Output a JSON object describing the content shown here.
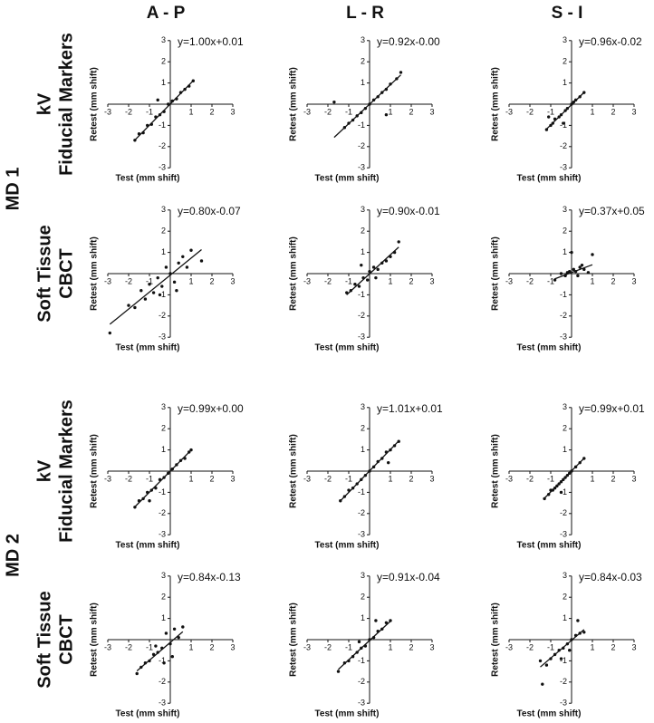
{
  "column_headers": [
    "A - P",
    "L - R",
    "S - I"
  ],
  "groups": [
    {
      "label": "MD 1",
      "rows": [
        [
          "kV",
          "Fiducial Markers"
        ],
        [
          "Soft Tissue",
          "CBCT"
        ]
      ]
    },
    {
      "label": "MD 2",
      "rows": [
        [
          "kV",
          "Fiducial Markers"
        ],
        [
          "Soft Tissue",
          "CBCT"
        ]
      ]
    }
  ],
  "chart_data": [
    {
      "type": "scatter",
      "xlabel": "Test (mm shift)",
      "ylabel": "Retest (mm shift)",
      "xlim": [
        -3,
        3
      ],
      "ylim": [
        -3,
        3
      ],
      "xticks": [
        -3,
        -2,
        -1,
        1,
        2,
        3
      ],
      "yticks": [
        -3,
        -2,
        -1,
        1,
        2,
        3
      ],
      "annotation": "y=1.00x+0.01",
      "fit": {
        "slope": 1.0,
        "intercept": 0.01
      },
      "color": "#111111",
      "x": [
        -1.7,
        -1.5,
        -1.3,
        -1.1,
        -0.9,
        -0.7,
        -0.5,
        -0.3,
        -0.1,
        0.1,
        0.3,
        0.5,
        0.7,
        0.9,
        1.1,
        -0.6
      ],
      "values": [
        -1.7,
        -1.4,
        -1.35,
        -1.0,
        -0.95,
        -0.6,
        -0.5,
        -0.35,
        0,
        0.15,
        0.25,
        0.55,
        0.7,
        0.85,
        1.1,
        0.2
      ]
    },
    {
      "type": "scatter",
      "xlabel": "Test (mm shift)",
      "ylabel": "Retest (mm shift)",
      "xlim": [
        -3,
        3
      ],
      "ylim": [
        -3,
        3
      ],
      "xticks": [
        -3,
        -2,
        -1,
        1,
        2,
        3
      ],
      "yticks": [
        -3,
        -2,
        -1,
        1,
        2,
        3
      ],
      "annotation": "y=0.92x-0.00",
      "fit": {
        "slope": 0.92,
        "intercept": 0
      },
      "color": "#111111",
      "x": [
        -1.2,
        -1.0,
        -0.8,
        -0.6,
        -0.4,
        -0.2,
        0,
        0.2,
        0.4,
        0.6,
        0.8,
        1.0,
        1.3,
        1.5,
        -1.7,
        0.8
      ],
      "values": [
        -1.1,
        -0.9,
        -0.75,
        -0.55,
        -0.4,
        -0.2,
        0,
        0.2,
        0.35,
        0.55,
        0.7,
        0.95,
        1.2,
        1.5,
        0.1,
        -0.5
      ]
    },
    {
      "type": "scatter",
      "xlabel": "Test (mm shift)",
      "ylabel": "Retest (mm shift)",
      "xlim": [
        -3,
        3
      ],
      "ylim": [
        -3,
        3
      ],
      "xticks": [
        -3,
        -2,
        -1,
        1,
        2,
        3
      ],
      "yticks": [
        -3,
        -2,
        -1,
        1,
        2,
        3
      ],
      "annotation": "y=0.96x-0.02",
      "fit": {
        "slope": 0.96,
        "intercept": -0.02
      },
      "color": "#111111",
      "x": [
        -1.2,
        -1.0,
        -0.9,
        -0.8,
        -0.6,
        -0.5,
        -0.3,
        -0.2,
        0,
        0.1,
        0.2,
        0.4,
        0.6,
        -1.1,
        -0.4
      ],
      "values": [
        -1.2,
        -1.0,
        -0.9,
        -0.7,
        -0.6,
        -0.5,
        -0.3,
        -0.2,
        0,
        0.1,
        0.2,
        0.35,
        0.55,
        -0.6,
        -0.9
      ]
    },
    {
      "type": "scatter",
      "xlabel": "Test (mm shift)",
      "ylabel": "Retest (mm shift)",
      "xlim": [
        -3,
        3
      ],
      "ylim": [
        -3,
        3
      ],
      "xticks": [
        -3,
        -2,
        -1,
        1,
        2,
        3
      ],
      "yticks": [
        -3,
        -2,
        -1,
        1,
        2,
        3
      ],
      "annotation": "y=0.80x-0.07",
      "fit": {
        "slope": 0.8,
        "intercept": -0.07
      },
      "color": "#111111",
      "x": [
        -2.9,
        -2.0,
        -1.7,
        -1.4,
        -1.2,
        -1.0,
        -0.8,
        -0.6,
        -0.4,
        -0.2,
        0,
        0.2,
        0.4,
        0.6,
        0.8,
        1.0,
        1.5,
        -0.5,
        0.3
      ],
      "values": [
        -2.8,
        -1.5,
        -1.6,
        -0.8,
        -1.2,
        -0.5,
        -0.9,
        -0.2,
        -0.6,
        0.3,
        0,
        -0.4,
        0.5,
        0.8,
        0.3,
        1.1,
        0.6,
        -1.0,
        -0.8
      ]
    },
    {
      "type": "scatter",
      "xlabel": "Test (mm shift)",
      "ylabel": "Retest (mm shift)",
      "xlim": [
        -3,
        3
      ],
      "ylim": [
        -3,
        3
      ],
      "xticks": [
        -3,
        -2,
        -1,
        1,
        2,
        3
      ],
      "yticks": [
        -3,
        -2,
        -1,
        1,
        2,
        3
      ],
      "annotation": "y=0.90x-0.01",
      "fit": {
        "slope": 0.9,
        "intercept": -0.01
      },
      "color": "#111111",
      "x": [
        -1.1,
        -0.9,
        -0.7,
        -0.5,
        -0.3,
        -0.1,
        0,
        0.2,
        0.4,
        0.6,
        0.8,
        1.0,
        1.2,
        1.4,
        -0.4,
        0.3
      ],
      "values": [
        -0.9,
        -0.8,
        -0.5,
        -0.6,
        -0.2,
        -0.3,
        0.1,
        0.3,
        0.2,
        0.5,
        0.6,
        0.8,
        1.0,
        1.5,
        0.4,
        -0.2
      ]
    },
    {
      "type": "scatter",
      "xlabel": "Test (mm shift)",
      "ylabel": "Retest (mm shift)",
      "xlim": [
        -3,
        3
      ],
      "ylim": [
        -3,
        3
      ],
      "xticks": [
        -3,
        -2,
        -1,
        1,
        2,
        3
      ],
      "yticks": [
        -3,
        -2,
        -1,
        1,
        2,
        3
      ],
      "annotation": "y=0.37x+0.05",
      "fit": {
        "slope": 0.37,
        "intercept": 0.05
      },
      "color": "#111111",
      "x": [
        -0.8,
        -0.5,
        -0.3,
        -0.1,
        0,
        0.1,
        0.2,
        0.4,
        0.5,
        0.6,
        0.8,
        1.0,
        0.3,
        -0.2
      ],
      "values": [
        -0.3,
        0,
        -0.1,
        0.1,
        1.0,
        0.2,
        0.1,
        0.3,
        0.4,
        0.2,
        0.05,
        0.9,
        -0.1,
        0.05
      ]
    },
    {
      "type": "scatter",
      "xlabel": "Test (mm shift)",
      "ylabel": "Retest (mm shift)",
      "xlim": [
        -3,
        3
      ],
      "ylim": [
        -3,
        3
      ],
      "xticks": [
        -3,
        -2,
        -1,
        1,
        2,
        3
      ],
      "yticks": [
        -3,
        -2,
        -1,
        1,
        2,
        3
      ],
      "annotation": "y=0.99x+0.00",
      "fit": {
        "slope": 0.99,
        "intercept": 0
      },
      "color": "#111111",
      "x": [
        -1.7,
        -1.5,
        -1.3,
        -1.1,
        -0.9,
        -0.7,
        -0.5,
        -0.3,
        -0.1,
        0.1,
        0.3,
        0.5,
        0.7,
        0.9,
        1.0,
        -1.0
      ],
      "values": [
        -1.7,
        -1.4,
        -1.3,
        -1.0,
        -0.9,
        -0.8,
        -0.4,
        -0.3,
        -0.1,
        0.1,
        0.3,
        0.5,
        0.6,
        0.9,
        1.0,
        -1.4
      ]
    },
    {
      "type": "scatter",
      "xlabel": "Test (mm shift)",
      "ylabel": "Retest (mm shift)",
      "xlim": [
        -3,
        3
      ],
      "ylim": [
        -3,
        3
      ],
      "xticks": [
        -3,
        -2,
        -1,
        1,
        2,
        3
      ],
      "yticks": [
        -3,
        -2,
        -1,
        1,
        2,
        3
      ],
      "annotation": "y=1.01x+0.01",
      "fit": {
        "slope": 1.01,
        "intercept": 0.01
      },
      "color": "#111111",
      "x": [
        -1.4,
        -1.2,
        -1.0,
        -0.8,
        -0.6,
        -0.4,
        -0.2,
        0,
        0.2,
        0.4,
        0.6,
        0.8,
        1.0,
        1.2,
        1.4,
        0.9
      ],
      "values": [
        -1.4,
        -1.2,
        -0.9,
        -0.8,
        -0.6,
        -0.4,
        -0.2,
        0,
        0.2,
        0.45,
        0.6,
        0.9,
        1.0,
        1.2,
        1.4,
        0.4
      ]
    },
    {
      "type": "scatter",
      "xlabel": "Test (mm shift)",
      "ylabel": "Retest (mm shift)",
      "xlim": [
        -3,
        3
      ],
      "ylim": [
        -3,
        3
      ],
      "xticks": [
        -3,
        -2,
        -1,
        1,
        2,
        3
      ],
      "yticks": [
        -3,
        -2,
        -1,
        1,
        2,
        3
      ],
      "annotation": "y=0.99x+0.01",
      "fit": {
        "slope": 0.99,
        "intercept": 0.01
      },
      "color": "#111111",
      "x": [
        -1.3,
        -1.1,
        -1.0,
        -0.9,
        -0.8,
        -0.7,
        -0.6,
        -0.5,
        -0.4,
        -0.3,
        -0.2,
        -0.1,
        0,
        0.2,
        0.4,
        0.6,
        -0.5
      ],
      "values": [
        -1.3,
        -1.1,
        -0.9,
        -0.9,
        -0.8,
        -0.7,
        -0.6,
        -0.5,
        -0.4,
        -0.3,
        -0.2,
        -0.1,
        0,
        0.2,
        0.4,
        0.6,
        -1.0
      ]
    },
    {
      "type": "scatter",
      "xlabel": "Test (mm shift)",
      "ylabel": "Retest (mm shift)",
      "xlim": [
        -3,
        3
      ],
      "ylim": [
        -3,
        3
      ],
      "xticks": [
        -3,
        -2,
        -1,
        1,
        2,
        3
      ],
      "yticks": [
        -3,
        -2,
        -1,
        1,
        2,
        3
      ],
      "annotation": "y=0.84x-0.13",
      "fit": {
        "slope": 0.84,
        "intercept": -0.13
      },
      "color": "#111111",
      "x": [
        -1.6,
        -1.4,
        -1.2,
        -1.0,
        -0.8,
        -0.6,
        -0.4,
        -0.2,
        0,
        0.2,
        0.4,
        0.6,
        -0.3,
        0.1,
        -0.7
      ],
      "values": [
        -1.6,
        -1.3,
        -1.1,
        -1.0,
        -0.7,
        -0.6,
        -0.4,
        0.3,
        -0.2,
        0.5,
        0.1,
        0.6,
        -1.1,
        -0.8,
        -0.3
      ]
    },
    {
      "type": "scatter",
      "xlabel": "Test (mm shift)",
      "ylabel": "Retest (mm shift)",
      "xlim": [
        -3,
        3
      ],
      "ylim": [
        -3,
        3
      ],
      "xticks": [
        -3,
        -2,
        -1,
        1,
        2,
        3
      ],
      "yticks": [
        -3,
        -2,
        -1,
        1,
        2,
        3
      ],
      "annotation": "y=0.91x-0.04",
      "fit": {
        "slope": 0.91,
        "intercept": -0.04
      },
      "color": "#111111",
      "x": [
        -1.5,
        -1.2,
        -1.0,
        -0.8,
        -0.6,
        -0.4,
        -0.2,
        0,
        0.2,
        0.4,
        0.6,
        0.8,
        1.0,
        0.3,
        -0.5
      ],
      "values": [
        -1.5,
        -1.1,
        -1.0,
        -0.8,
        -0.6,
        -0.4,
        -0.3,
        0,
        0.1,
        0.4,
        0.5,
        0.8,
        0.9,
        0.9,
        -0.1
      ]
    },
    {
      "type": "scatter",
      "xlabel": "Test (mm shift)",
      "ylabel": "Retest (mm shift)",
      "xlim": [
        -3,
        3
      ],
      "ylim": [
        -3,
        3
      ],
      "xticks": [
        -3,
        -2,
        -1,
        1,
        2,
        3
      ],
      "yticks": [
        -3,
        -2,
        -1,
        1,
        2,
        3
      ],
      "annotation": "y=0.84x-0.03",
      "fit": {
        "slope": 0.84,
        "intercept": -0.03
      },
      "color": "#111111",
      "x": [
        -1.4,
        -1.2,
        -1.0,
        -0.8,
        -0.6,
        -0.4,
        -0.2,
        0,
        0.2,
        0.4,
        0.6,
        -1.5,
        0.3,
        -0.1,
        -0.5
      ],
      "values": [
        -2.1,
        -1.2,
        -0.9,
        -0.7,
        -0.5,
        -0.4,
        -0.2,
        0,
        0.2,
        0.3,
        0.35,
        -1.0,
        0.9,
        -0.5,
        -0.9
      ]
    }
  ]
}
